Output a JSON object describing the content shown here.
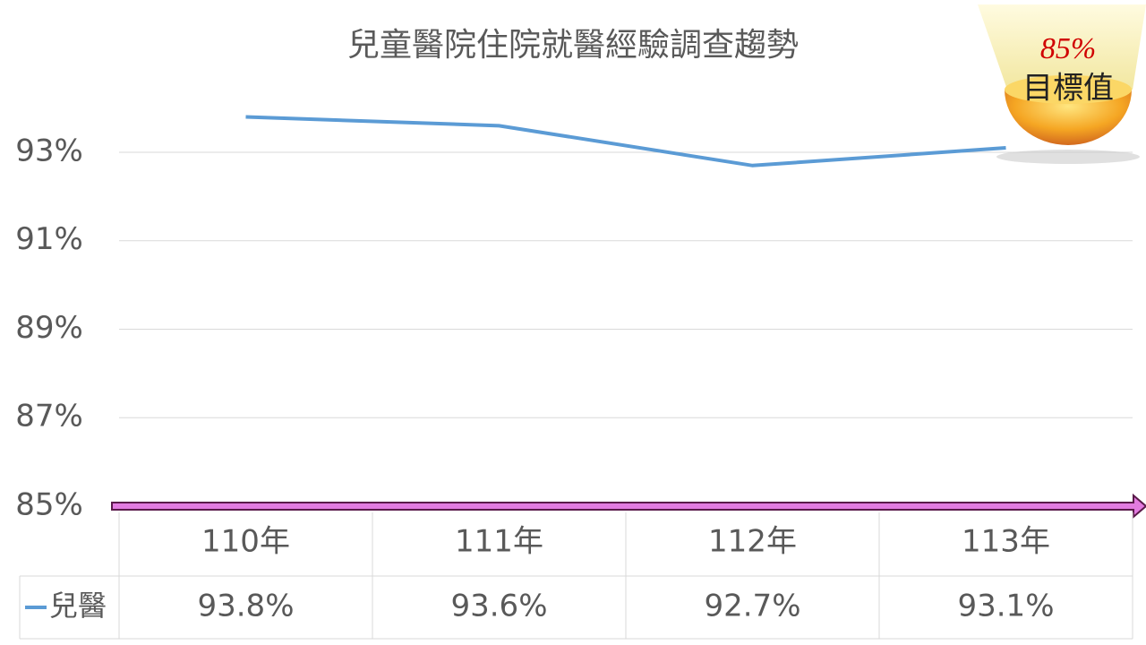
{
  "chart_data": {
    "type": "line",
    "title": "兒童醫院住院就醫經驗調查趨勢",
    "categories": [
      "110年",
      "111年",
      "112年",
      "113年"
    ],
    "series": [
      {
        "name": "兒醫",
        "color": "#5b9bd5",
        "values": [
          93.8,
          93.6,
          92.7,
          93.1
        ],
        "value_labels": [
          "93.8%",
          "93.6%",
          "92.7%",
          "93.1%"
        ]
      }
    ],
    "ylim": [
      85,
      94
    ],
    "yticks": [
      {
        "value": 85,
        "label": "85%"
      },
      {
        "value": 87,
        "label": "87%"
      },
      {
        "value": 89,
        "label": "89%"
      },
      {
        "value": 91,
        "label": "91%"
      },
      {
        "value": 93,
        "label": "93%"
      }
    ],
    "grid": true,
    "target": {
      "value": 85,
      "label": "85%",
      "text": "目標值",
      "color": "#e27be0"
    }
  }
}
